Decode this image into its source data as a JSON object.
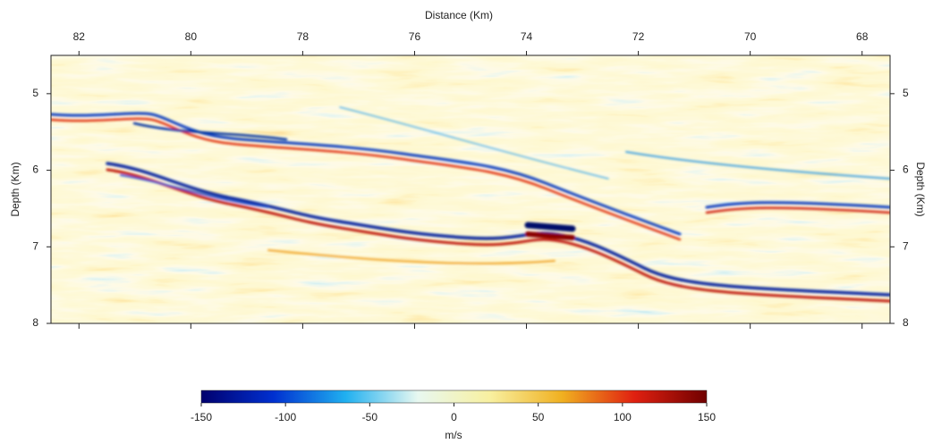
{
  "chart_data": {
    "type": "heatmap",
    "xlabel": "Distance (Km)",
    "ylabel": "Depth (Km)",
    "xlim": [
      82.5,
      67.5
    ],
    "xticks": [
      82,
      80,
      78,
      76,
      74,
      72,
      70,
      68
    ],
    "ylim": [
      8,
      4.5
    ],
    "yticks": [
      5,
      6,
      7,
      8
    ],
    "colorbar": {
      "label": "m/s",
      "lim": [
        -150,
        150
      ],
      "ticks": [
        -150,
        -100,
        -50,
        0,
        50,
        100,
        150
      ],
      "colors": [
        "#00006e",
        "#0030d0",
        "#20b0f0",
        "#e8f8f0",
        "#f8f0a0",
        "#f0b020",
        "#e02010",
        "#700000"
      ]
    }
  }
}
